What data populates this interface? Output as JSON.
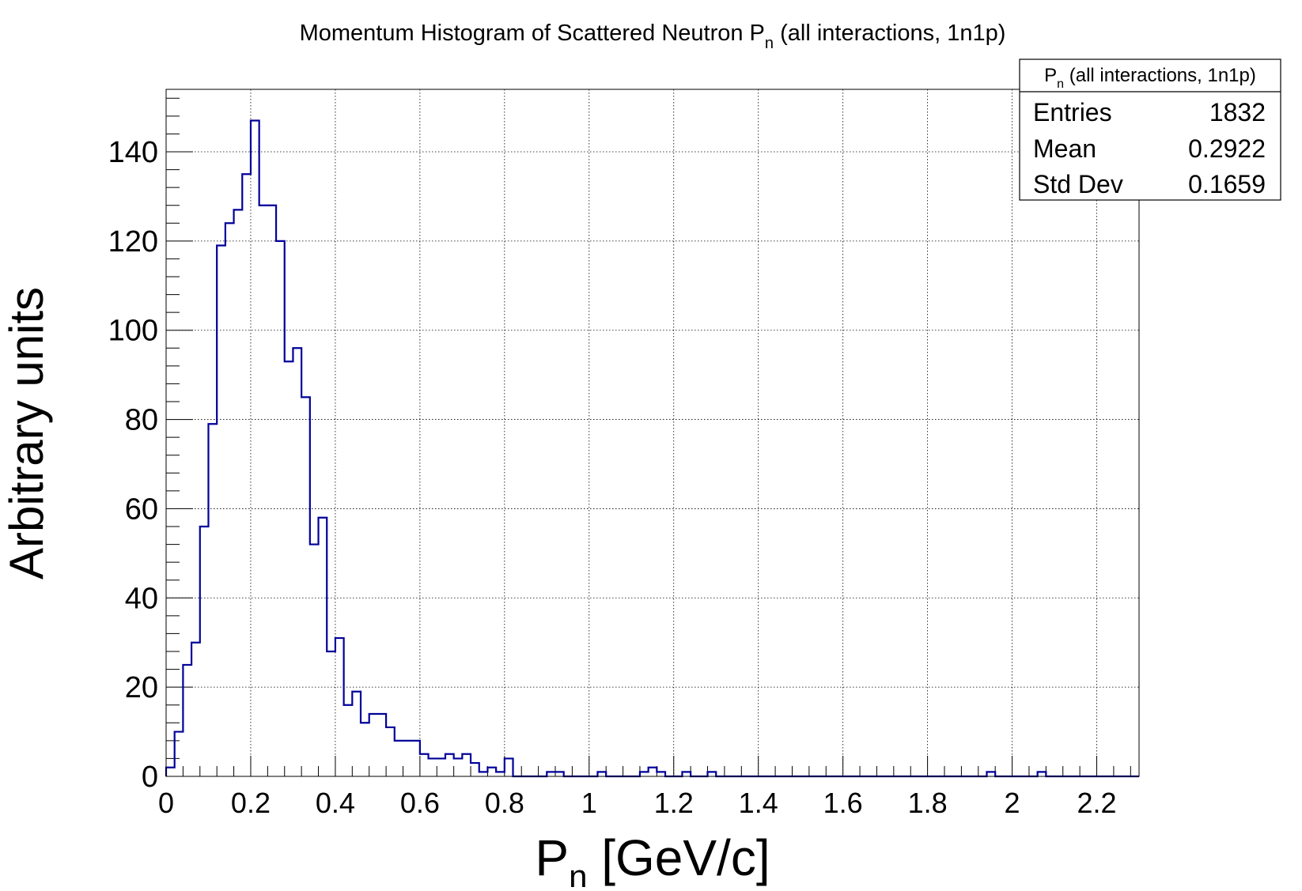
{
  "chart_data": {
    "type": "bar",
    "title": {
      "main": "Momentum Histogram of Scattered Neutron P",
      "sub": "n",
      "rest": " (all interactions, 1n1p)"
    },
    "xlabel": {
      "main": "P",
      "sub": "n",
      "rest": " [GeV/c]"
    },
    "ylabel": "Arbitrary units",
    "xlim": [
      0,
      2.3
    ],
    "ylim": [
      0,
      154
    ],
    "bin_width": 0.02,
    "x_ticks": [
      "0",
      "0.2",
      "0.4",
      "0.6",
      "0.8",
      "1",
      "1.2",
      "1.4",
      "1.6",
      "1.8",
      "2",
      "2.2"
    ],
    "y_ticks": [
      "0",
      "20",
      "40",
      "60",
      "80",
      "100",
      "120",
      "140"
    ],
    "grid": true,
    "series": [
      {
        "color": "#000099",
        "values": [
          2,
          10,
          25,
          30,
          56,
          79,
          119,
          124,
          127,
          135,
          147,
          128,
          128,
          120,
          93,
          96,
          85,
          52,
          58,
          28,
          31,
          16,
          19,
          12,
          14,
          14,
          11,
          8,
          8,
          8,
          5,
          4,
          4,
          5,
          4,
          5,
          3,
          1,
          2,
          1,
          4,
          0,
          0,
          0,
          0,
          1,
          1,
          0,
          0,
          0,
          0,
          1,
          0,
          0,
          0,
          0,
          1,
          2,
          1,
          0,
          0,
          1,
          0,
          0,
          1,
          0,
          0,
          0,
          0,
          0,
          0,
          0,
          0,
          0,
          0,
          0,
          0,
          0,
          0,
          0,
          0,
          0,
          0,
          0,
          0,
          0,
          0,
          0,
          0,
          0,
          0,
          0,
          0,
          0,
          0,
          0,
          0,
          1,
          0,
          0,
          0,
          0,
          0,
          1,
          0,
          0,
          0,
          0,
          0,
          0,
          0,
          0,
          0,
          0,
          0
        ]
      }
    ],
    "stats_box": {
      "title_main": "P",
      "title_sub": "n",
      "title_rest": " (all interactions, 1n1p)",
      "rows": [
        {
          "label": "Entries",
          "value": "1832"
        },
        {
          "label": "Mean",
          "value": "0.2922"
        },
        {
          "label": "Std Dev",
          "value": "0.1659"
        }
      ]
    }
  }
}
